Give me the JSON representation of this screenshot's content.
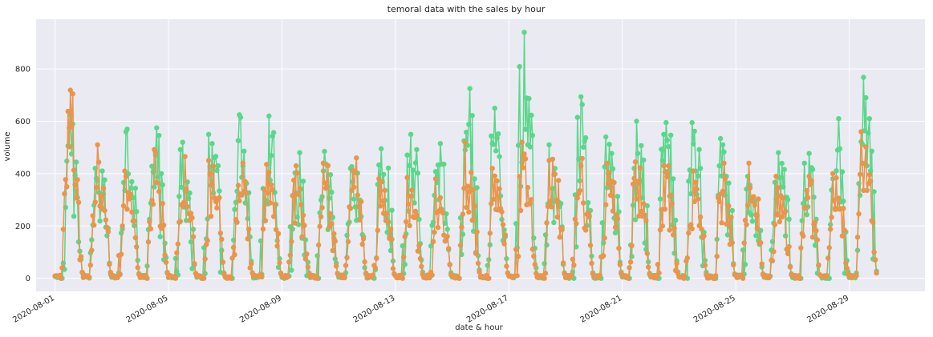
{
  "chart_data": {
    "type": "line",
    "title": "temoral data with the sales by hour",
    "xlabel": "date & hour",
    "ylabel": "volume",
    "x_range": [
      "2020-07-31T08:00",
      "2020-08-31T16:00"
    ],
    "ylim": [
      -50,
      990
    ],
    "x_ticks": [
      "2020-08-01",
      "2020-08-05",
      "2020-08-09",
      "2020-08-13",
      "2020-08-17",
      "2020-08-21",
      "2020-08-25",
      "2020-08-29"
    ],
    "y_ticks": [
      0,
      200,
      400,
      600,
      800
    ],
    "grid": true,
    "markers": true,
    "daily_max_green": [
      590,
      420,
      560,
      575,
      520,
      550,
      615,
      620,
      480,
      485,
      420,
      495,
      550,
      515,
      725,
      650,
      940,
      510,
      615,
      540,
      600,
      550,
      595,
      510,
      390,
      480,
      440,
      610,
      690
    ],
    "daily_max_orange": [
      705,
      510,
      410,
      480,
      465,
      450,
      440,
      435,
      430,
      440,
      460,
      380,
      385,
      380,
      520,
      420,
      520,
      450,
      430,
      440,
      445,
      430,
      410,
      440,
      440,
      390,
      390,
      400,
      560
    ],
    "series": [
      {
        "name": "",
        "color": "#5ad78b"
      },
      {
        "name": "",
        "color": "#e9954b"
      }
    ]
  }
}
